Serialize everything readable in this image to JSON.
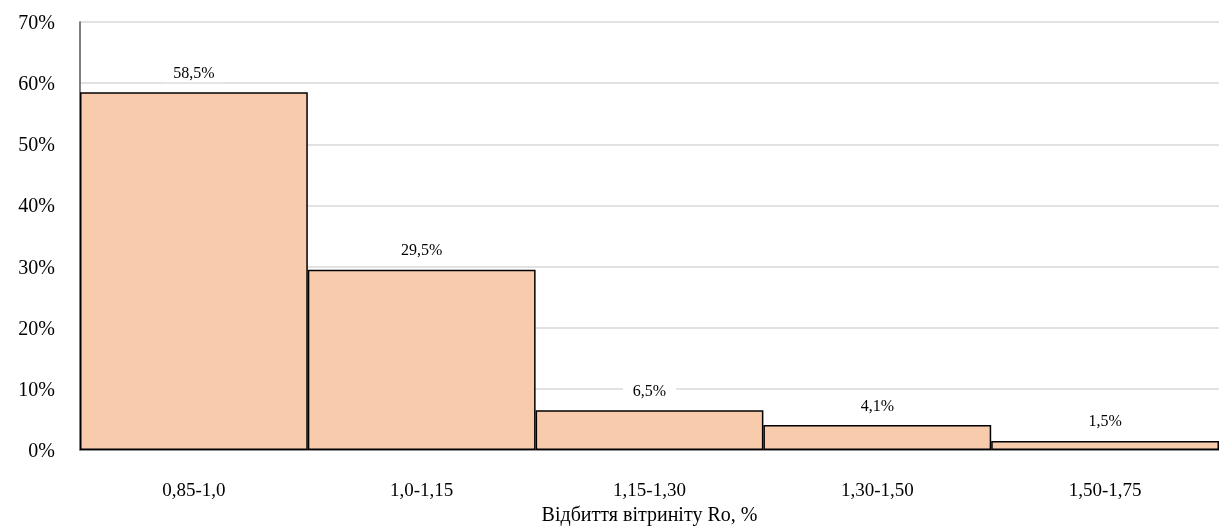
{
  "chart_data": {
    "type": "bar",
    "xlabel": "Відбиття вітриніту Ro, %",
    "categories": [
      "0,85-1,0",
      "1,0-1,15",
      "1,15-1,30",
      "1,30-1,50",
      "1,50-1,75"
    ],
    "values": [
      58.5,
      29.5,
      6.5,
      4.1,
      1.5
    ],
    "value_labels": [
      "58,5%",
      "29,5%",
      "6,5%",
      "4,1%",
      "1,5%"
    ],
    "color": "#f8cbad",
    "ylim": [
      0,
      70
    ],
    "yticks": [
      {
        "value": 0,
        "label": "0%"
      },
      {
        "value": 10,
        "label": "10%"
      },
      {
        "value": 20,
        "label": "20%"
      },
      {
        "value": 30,
        "label": "30%"
      },
      {
        "value": 40,
        "label": "40%"
      },
      {
        "value": 50,
        "label": "50%"
      },
      {
        "value": 60,
        "label": "60%"
      },
      {
        "value": 70,
        "label": "70%"
      }
    ],
    "grid": "y"
  }
}
